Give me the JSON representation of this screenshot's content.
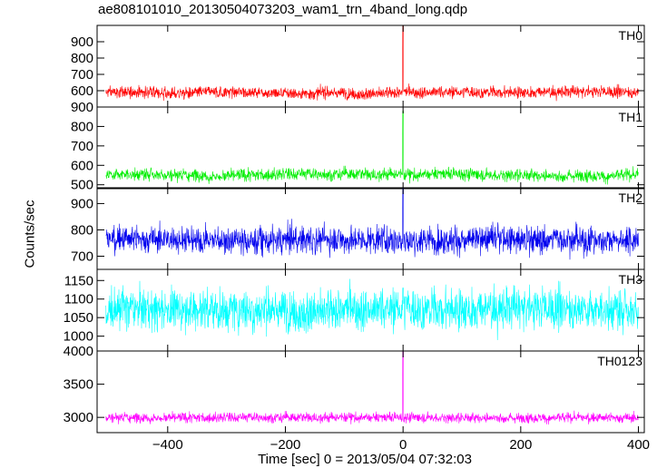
{
  "chart_data": {
    "type": "line",
    "title": "ae808101010_20130504073203_wam1_trn_4band_long.qdp",
    "xlabel": "Time [sec] 0 = 2013/05/04 07:32:03",
    "ylabel": "Counts/sec",
    "xlim": [
      -520,
      410
    ],
    "x_ticks": [
      -400,
      -200,
      0,
      200,
      400
    ],
    "x_tick_labels": [
      "−400",
      "−200",
      "0",
      "200",
      "400"
    ],
    "x_range_data": [
      -505,
      400
    ],
    "grid": false,
    "panels": [
      {
        "name": "TH0",
        "color": "#ff0000",
        "ylim": [
          500,
          1000
        ],
        "y_ticks": [
          600,
          700,
          800,
          900
        ],
        "y_tick_labels": [
          "600",
          "700",
          "800",
          "900"
        ],
        "baseline": 590,
        "noise": 18,
        "spike_peak": 1000
      },
      {
        "name": "TH1",
        "color": "#00ee00",
        "ylim": [
          480,
          900
        ],
        "y_ticks": [
          500,
          600,
          700,
          800,
          900
        ],
        "y_tick_labels": [
          "500",
          "600",
          "700",
          "800",
          "900"
        ],
        "baseline": 555,
        "noise": 16,
        "spike_peak": 880
      },
      {
        "name": "TH2",
        "color": "#0000ee",
        "ylim": [
          650,
          960
        ],
        "y_ticks": [
          700,
          800,
          900
        ],
        "y_tick_labels": [
          "700",
          "800",
          "900"
        ],
        "baseline": 768,
        "noise": 26,
        "spike_peak": 960
      },
      {
        "name": "TH3",
        "color": "#00ffff",
        "ylim": [
          960,
          1180
        ],
        "y_ticks": [
          1000,
          1050,
          1100,
          1150
        ],
        "y_tick_labels": [
          "1000",
          "1050",
          "1100",
          "1150"
        ],
        "baseline": 1072,
        "noise": 28,
        "spike_peak": 1130
      },
      {
        "name": "TH0123",
        "color": "#ff00ff",
        "ylim": [
          2770,
          4000
        ],
        "y_ticks": [
          3000,
          3500,
          4000
        ],
        "y_tick_labels": [
          "3000",
          "3500",
          "4000"
        ],
        "baseline": 3000,
        "noise": 38,
        "spike_peak": 4000
      }
    ]
  }
}
